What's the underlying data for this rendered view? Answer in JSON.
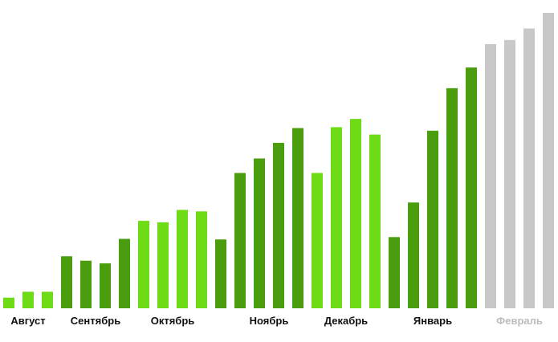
{
  "chart_data": {
    "type": "bar",
    "title": "",
    "xlabel": "",
    "ylabel": "",
    "ylim": [
      0,
      100
    ],
    "grid": false,
    "legend": "none",
    "colors": {
      "light_green": "#6EDB17",
      "dark_green": "#4A9D0D",
      "grey": "#C8C8C8",
      "label_text": "#111111",
      "label_text_muted": "#BDBDBD"
    },
    "months": [
      {
        "label": "Август",
        "color": "light_green",
        "label_color": "label_text",
        "values": [
          3.6,
          5.6,
          5.6
        ]
      },
      {
        "label": "Сентябрь",
        "color": "dark_green",
        "label_color": "label_text",
        "values": [
          17.6,
          16.1,
          15.2,
          23.5
        ]
      },
      {
        "label": "Октябрь",
        "color": "light_green",
        "label_color": "label_text",
        "values": [
          29.6,
          29.1,
          33.3,
          32.8
        ]
      },
      {
        "label": "",
        "color": "dark_green",
        "label_color": "label_text",
        "values": [
          23.3
        ]
      },
      {
        "label": "Ноябрь",
        "color": "dark_green",
        "label_color": "label_text",
        "values": [
          45.8,
          50.7,
          56.0,
          61.0
        ]
      },
      {
        "label": "Декабрь",
        "color": "light_green",
        "label_color": "label_text",
        "values": [
          45.8,
          61.3,
          64.1,
          58.8
        ]
      },
      {
        "label": "Январь",
        "color": "dark_green",
        "label_color": "label_text",
        "values": [
          24.1,
          35.8,
          60.1,
          74.5,
          81.5
        ]
      },
      {
        "label": "Февраль",
        "color": "grey",
        "label_color": "label_text_muted",
        "values": [
          89.4,
          90.8,
          94.7,
          100.0
        ]
      }
    ]
  }
}
